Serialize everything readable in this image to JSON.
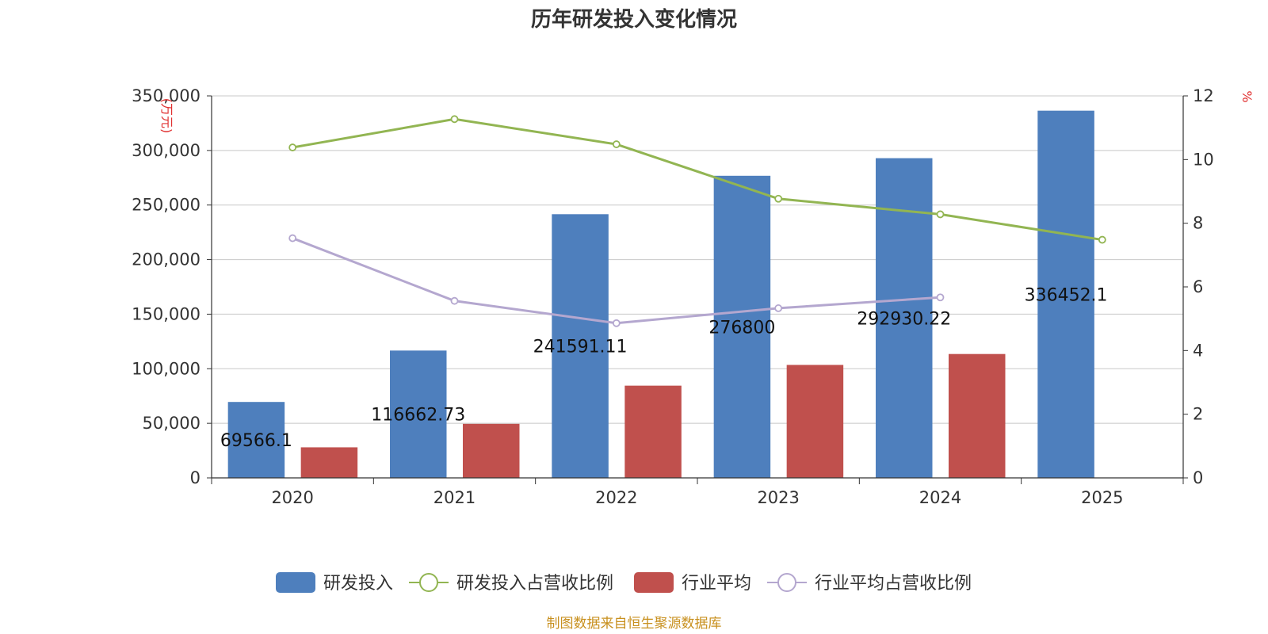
{
  "chart_data": {
    "type": "bar",
    "title": "历年研发投入变化情况",
    "categories": [
      "2020",
      "2021",
      "2022",
      "2023",
      "2024",
      "2025"
    ],
    "y_left": {
      "unit": "(万元)",
      "ylim": [
        0,
        350000
      ],
      "ticks": [
        0,
        50000,
        100000,
        150000,
        200000,
        250000,
        300000,
        350000
      ],
      "tick_labels": [
        "0",
        "50,000",
        "100,000",
        "150,000",
        "200,000",
        "250,000",
        "300,000",
        "350,000"
      ]
    },
    "y_right": {
      "unit": "%",
      "ylim": [
        0,
        12
      ],
      "ticks": [
        0,
        2,
        4,
        6,
        8,
        10,
        12
      ],
      "tick_labels": [
        "0",
        "2",
        "4",
        "6",
        "8",
        "10",
        "12"
      ]
    },
    "series": [
      {
        "name": "研发投入",
        "type": "bar",
        "axis": "left",
        "color": "#4e7fbd",
        "values": [
          69566.1,
          116662.73,
          241591.11,
          276800,
          292930.22,
          336452.1
        ],
        "labels": [
          "69566.1",
          "116662.73",
          "241591.11",
          "276800",
          "292930.22",
          "336452.1"
        ]
      },
      {
        "name": "研发投入占营收比例",
        "type": "line",
        "axis": "right",
        "color": "#92b552",
        "values": [
          10.38,
          11.27,
          10.48,
          8.77,
          8.28,
          7.48
        ]
      },
      {
        "name": "行业平均",
        "type": "bar",
        "axis": "left",
        "color": "#c0504d",
        "values": [
          28000,
          49500,
          84500,
          103500,
          113500,
          null
        ]
      },
      {
        "name": "行业平均占营收比例",
        "type": "line",
        "axis": "right",
        "color": "#b4a7cf",
        "values": [
          7.53,
          5.56,
          4.86,
          5.33,
          5.67,
          null
        ]
      }
    ],
    "grid": true,
    "legend_position": "bottom-center",
    "source": "制图数据来自恒生聚源数据库"
  }
}
